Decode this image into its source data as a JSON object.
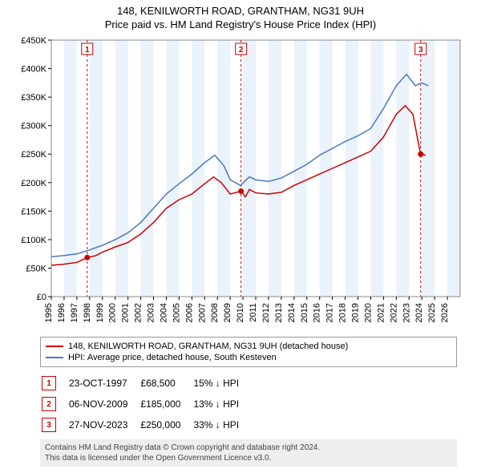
{
  "title_line1": "148, KENILWORTH ROAD, GRANTHAM, NG31 9UH",
  "title_line2": "Price paid vs. HM Land Registry's House Price Index (HPI)",
  "chart": {
    "type": "line",
    "background_color": "#ffffff",
    "banded_bg_color": "#eaf2fb",
    "plot_border_color": "#888888",
    "tick_font_size": 11,
    "axis_label_color": "#000000",
    "x": {
      "min": 1995,
      "max": 2027,
      "ticks": [
        1995,
        1996,
        1997,
        1998,
        1999,
        2000,
        2001,
        2002,
        2003,
        2004,
        2005,
        2006,
        2007,
        2008,
        2009,
        2010,
        2011,
        2012,
        2013,
        2014,
        2015,
        2016,
        2017,
        2018,
        2019,
        2020,
        2021,
        2022,
        2023,
        2024,
        2025,
        2026
      ]
    },
    "y": {
      "min": 0,
      "max": 450000,
      "ticks": [
        0,
        50000,
        100000,
        150000,
        200000,
        250000,
        300000,
        350000,
        400000,
        450000
      ],
      "labels": [
        "£0",
        "£50K",
        "£100K",
        "£150K",
        "£200K",
        "£250K",
        "£300K",
        "£350K",
        "£400K",
        "£450K"
      ]
    },
    "series": [
      {
        "name": "price_paid",
        "color": "#cc0000",
        "width": 1.5,
        "points": [
          [
            1995,
            55000
          ],
          [
            1996,
            57000
          ],
          [
            1997,
            60000
          ],
          [
            1997.8,
            68500
          ],
          [
            1998.5,
            72000
          ],
          [
            1999,
            78000
          ],
          [
            2000,
            87000
          ],
          [
            2001,
            95000
          ],
          [
            2002,
            110000
          ],
          [
            2003,
            130000
          ],
          [
            2004,
            155000
          ],
          [
            2005,
            170000
          ],
          [
            2006,
            180000
          ],
          [
            2007,
            198000
          ],
          [
            2007.7,
            210000
          ],
          [
            2008.3,
            200000
          ],
          [
            2009,
            180000
          ],
          [
            2009.85,
            185000
          ],
          [
            2010.2,
            175000
          ],
          [
            2010.5,
            188000
          ],
          [
            2011,
            182000
          ],
          [
            2012,
            180000
          ],
          [
            2013,
            183000
          ],
          [
            2014,
            195000
          ],
          [
            2015,
            205000
          ],
          [
            2016,
            215000
          ],
          [
            2017,
            225000
          ],
          [
            2018,
            235000
          ],
          [
            2019,
            245000
          ],
          [
            2020,
            255000
          ],
          [
            2021,
            280000
          ],
          [
            2022,
            320000
          ],
          [
            2022.7,
            335000
          ],
          [
            2023.3,
            320000
          ],
          [
            2023.9,
            250000
          ],
          [
            2024.3,
            248000
          ]
        ]
      },
      {
        "name": "hpi",
        "color": "#4a78c4",
        "width": 1.5,
        "points": [
          [
            1995,
            70000
          ],
          [
            1996,
            72000
          ],
          [
            1997,
            75000
          ],
          [
            1998,
            82000
          ],
          [
            1999,
            90000
          ],
          [
            2000,
            100000
          ],
          [
            2001,
            112000
          ],
          [
            2002,
            130000
          ],
          [
            2003,
            155000
          ],
          [
            2004,
            180000
          ],
          [
            2005,
            198000
          ],
          [
            2006,
            215000
          ],
          [
            2007,
            235000
          ],
          [
            2007.8,
            248000
          ],
          [
            2008.5,
            230000
          ],
          [
            2009,
            205000
          ],
          [
            2009.8,
            195000
          ],
          [
            2010.5,
            210000
          ],
          [
            2011,
            205000
          ],
          [
            2012,
            202000
          ],
          [
            2013,
            208000
          ],
          [
            2014,
            220000
          ],
          [
            2015,
            232000
          ],
          [
            2016,
            248000
          ],
          [
            2017,
            260000
          ],
          [
            2018,
            272000
          ],
          [
            2019,
            282000
          ],
          [
            2020,
            295000
          ],
          [
            2021,
            330000
          ],
          [
            2022,
            370000
          ],
          [
            2022.8,
            390000
          ],
          [
            2023.5,
            370000
          ],
          [
            2024,
            375000
          ],
          [
            2024.5,
            370000
          ]
        ]
      }
    ],
    "event_markers": [
      {
        "num": "1",
        "x": 1997.81
      },
      {
        "num": "2",
        "x": 2009.85
      },
      {
        "num": "3",
        "x": 2023.91
      }
    ],
    "event_line_color": "#cc0000",
    "sale_marker_color": "#cc0000",
    "sale_points": [
      [
        1997.81,
        68500
      ],
      [
        2009.85,
        185000
      ],
      [
        2023.91,
        250000
      ]
    ]
  },
  "legend": {
    "items": [
      {
        "color": "#cc0000",
        "label": "148, KENILWORTH ROAD, GRANTHAM, NG31 9UH (detached house)"
      },
      {
        "color": "#4a78c4",
        "label": "HPI: Average price, detached house, South Kesteven"
      }
    ]
  },
  "markers_table": {
    "rows": [
      {
        "num": "1",
        "date": "23-OCT-1997",
        "price": "£68,500",
        "delta": "15% ↓ HPI"
      },
      {
        "num": "2",
        "date": "06-NOV-2009",
        "price": "£185,000",
        "delta": "13% ↓ HPI"
      },
      {
        "num": "3",
        "date": "27-NOV-2023",
        "price": "£250,000",
        "delta": "33% ↓ HPI"
      }
    ]
  },
  "footer_line1": "Contains HM Land Registry data © Crown copyright and database right 2024.",
  "footer_line2": "This data is licensed under the Open Government Licence v3.0."
}
